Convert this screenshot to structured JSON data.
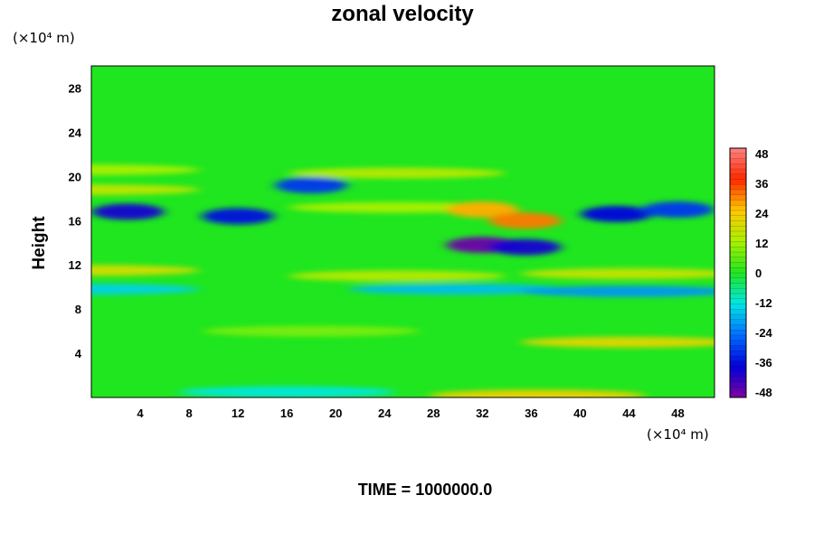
{
  "chart_data": {
    "type": "heatmap",
    "title": "zonal velocity",
    "ylabel": "Height",
    "xlabel": "",
    "x_unit": "(×10⁴ m)",
    "y_unit": "(×10⁴ m)",
    "footer": "TIME = 1000000.0",
    "xlim": [
      0,
      51
    ],
    "ylim": [
      0,
      30
    ],
    "x_ticks": [
      4,
      8,
      12,
      16,
      20,
      24,
      28,
      32,
      36,
      40,
      44,
      48
    ],
    "y_ticks": [
      4,
      8,
      12,
      16,
      20,
      24,
      28
    ],
    "colorbar_ticks": [
      48,
      36,
      24,
      12,
      0,
      -12,
      -24,
      -36,
      -48
    ],
    "colorbar_range": [
      -48,
      48
    ],
    "grid": false,
    "colors": {
      "background_field": "#1fe61f",
      "positive_max": "#ff8080",
      "negative_max": "#8000a0"
    },
    "features": [
      {
        "x": 0,
        "y": 20.6,
        "value": 12
      },
      {
        "x": 25,
        "y": 20.3,
        "value": 14
      },
      {
        "x": 0,
        "y": 18.8,
        "value": 15
      },
      {
        "x": 18,
        "y": 19.2,
        "value": -30
      },
      {
        "x": 3,
        "y": 16.8,
        "value": -38
      },
      {
        "x": 12,
        "y": 16.4,
        "value": -35
      },
      {
        "x": 25,
        "y": 17.2,
        "value": 12
      },
      {
        "x": 32,
        "y": 17.0,
        "value": 26
      },
      {
        "x": 35.5,
        "y": 16.0,
        "value": 30
      },
      {
        "x": 32,
        "y": 13.8,
        "value": -46
      },
      {
        "x": 35.5,
        "y": 13.6,
        "value": -38
      },
      {
        "x": 43,
        "y": 16.6,
        "value": -36
      },
      {
        "x": 48,
        "y": 17.0,
        "value": -30
      },
      {
        "x": 0,
        "y": 11.5,
        "value": 18
      },
      {
        "x": 25,
        "y": 11.0,
        "value": 14
      },
      {
        "x": 44,
        "y": 11.2,
        "value": 16
      },
      {
        "x": 0,
        "y": 9.8,
        "value": -14
      },
      {
        "x": 30,
        "y": 9.8,
        "value": -16
      },
      {
        "x": 44,
        "y": 9.6,
        "value": -20
      },
      {
        "x": 18,
        "y": 6.0,
        "value": 8
      },
      {
        "x": 44,
        "y": 5.0,
        "value": 20
      },
      {
        "x": 36.5,
        "y": 0.2,
        "value": 22
      },
      {
        "x": 16,
        "y": 0.5,
        "value": -12
      }
    ]
  }
}
